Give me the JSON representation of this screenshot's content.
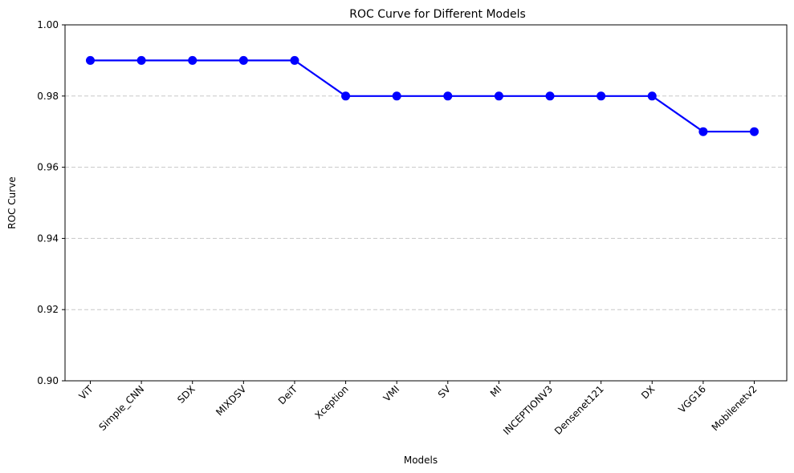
{
  "chart_data": {
    "type": "line",
    "title": "ROC Curve for Different Models",
    "xlabel": "Models",
    "ylabel": "ROC Curve",
    "ylim": [
      0.9,
      1.0
    ],
    "yticks": [
      "0.90",
      "0.92",
      "0.94",
      "0.96",
      "0.98",
      "1.00"
    ],
    "grid": "horizontal dashed",
    "categories": [
      "ViT",
      "Simple_CNN",
      "SDX",
      "MIXDSV",
      "DeiT",
      "Xception",
      "VMI",
      "SV",
      "MI",
      "INCEPTIONV3",
      "Densenet121",
      "DX",
      "VGG16",
      "Mobilenetv2"
    ],
    "series": [
      {
        "values": [
          0.99,
          0.99,
          0.99,
          0.99,
          0.99,
          0.98,
          0.98,
          0.98,
          0.98,
          0.98,
          0.98,
          0.98,
          0.97,
          0.97
        ],
        "color": "#0000ff",
        "marker": "circle"
      }
    ]
  }
}
